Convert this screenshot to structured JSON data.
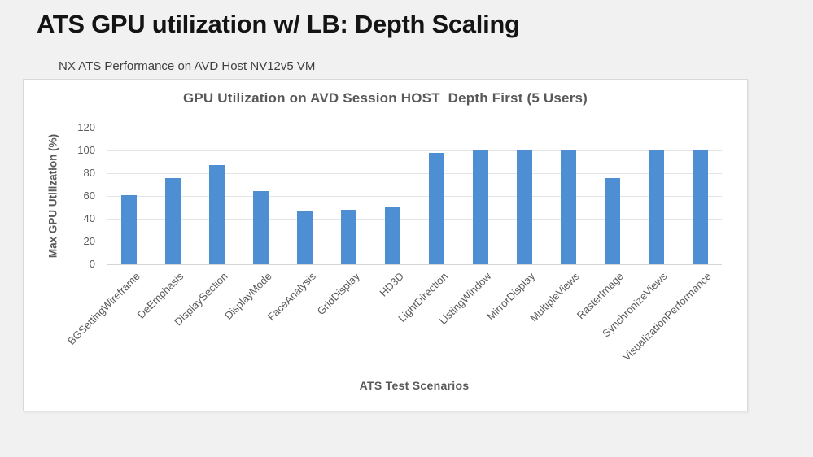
{
  "page": {
    "title": "ATS GPU utilization w/ LB: Depth Scaling",
    "subtitle": "NX ATS Performance on AVD Host NV12v5 VM"
  },
  "chart_data": {
    "type": "bar",
    "title": "GPU Utilization on AVD Session HOST  Depth First (5 Users)",
    "xlabel": "ATS Test Scenarios",
    "ylabel": "Max GPU Utilization (%)",
    "categories": [
      "BGSettingWireframe",
      "DeEmphasis",
      "DisplaySection",
      "DisplayMode",
      "FaceAnalysis",
      "GridDisplay",
      "HD3D",
      "LightDirection",
      "ListingWindow",
      "MirrorDisplay",
      "MultipleViews",
      "RasterImage",
      "SynchronizeViews",
      "VisualizationPerformance"
    ],
    "values": [
      61,
      76,
      87,
      64,
      47,
      48,
      50,
      98,
      100,
      100,
      100,
      76,
      100,
      100
    ],
    "ylim": [
      0,
      120
    ],
    "ytick_step": 20,
    "grid": true,
    "legend": false,
    "bar_color": "#4E8ED3",
    "gridline_color": "#E4E4E4",
    "axis_text_color": "#595959"
  },
  "colors": {
    "page_background": "#F1F1F1",
    "panel_background": "#FFFFFF",
    "panel_border": "#D8D8D8",
    "title_color": "#141414",
    "subtitle_color": "#3F3F3F"
  }
}
